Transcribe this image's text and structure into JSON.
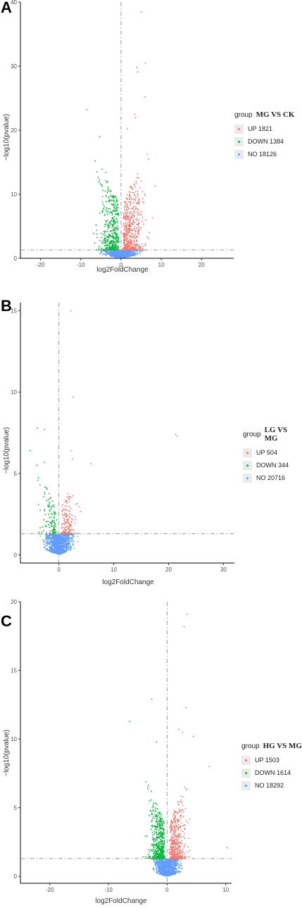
{
  "panels": [
    {
      "label": "A",
      "legend": {
        "group_label": "group",
        "subtitle": "MG VS CK",
        "items": [
          "UP 1821",
          "DOWN 1384",
          "NO 18126"
        ]
      }
    },
    {
      "label": "B",
      "legend": {
        "group_label": "group",
        "subtitle": "LG VS MG",
        "items": [
          "UP 504",
          "DOWN 344",
          "NO 20716"
        ]
      }
    },
    {
      "label": "C",
      "legend": {
        "group_label": "group",
        "subtitle": "HG VS MG",
        "items": [
          "UP 1503",
          "DOWN 1614",
          "NO 18292"
        ]
      }
    }
  ],
  "colors": {
    "up": "#f8766d",
    "down": "#00ba38",
    "no": "#619cff",
    "threshold": "#9a9a9a"
  },
  "chart_data": [
    {
      "type": "scatter",
      "title": "",
      "xlabel": "log2FoldChange",
      "ylabel": "−log10(pvalue)",
      "xlim": [
        -25,
        28
      ],
      "ylim": [
        0,
        40
      ],
      "xticks": [
        -20,
        -10,
        0,
        10,
        20
      ],
      "yticks": [
        0,
        10,
        20,
        30,
        40
      ],
      "vline": 0,
      "hline": 1.3,
      "grid": false,
      "legend_position": "right",
      "counts": {
        "up": 1821,
        "down": 1384,
        "no": 18126
      },
      "seed": 7,
      "xspread": 9,
      "yspread": 13,
      "outliers": [
        {
          "x": 5.0,
          "y": 38.5,
          "group": "UP"
        },
        {
          "x": 6.1,
          "y": 30.5,
          "group": "UP"
        },
        {
          "x": 3.9,
          "y": 29.8,
          "group": "UP"
        },
        {
          "x": 4.1,
          "y": 29.1,
          "group": "UP"
        },
        {
          "x": 6.0,
          "y": 25.2,
          "group": "UP"
        },
        {
          "x": 3.4,
          "y": 22.5,
          "group": "UP"
        },
        {
          "x": 3.6,
          "y": 22.0,
          "group": "UP"
        },
        {
          "x": 1.6,
          "y": 20.2,
          "group": "UP"
        },
        {
          "x": -8.5,
          "y": 23.2,
          "group": "DOWN"
        },
        {
          "x": -5.3,
          "y": 19.0,
          "group": "DOWN"
        },
        {
          "x": -6.4,
          "y": 15.2,
          "group": "DOWN"
        },
        {
          "x": -6.0,
          "y": 13.5,
          "group": "DOWN"
        },
        {
          "x": -3.8,
          "y": 13.4,
          "group": "DOWN"
        },
        {
          "x": 8.5,
          "y": 11.3,
          "group": "UP"
        }
      ]
    },
    {
      "type": "scatter",
      "title": "",
      "xlabel": "log2FoldChange",
      "ylabel": "−log10(pvalue)",
      "xlim": [
        -7,
        32
      ],
      "ylim": [
        -0.5,
        15.5
      ],
      "xticks": [
        0,
        10,
        20,
        30
      ],
      "yticks": [
        0,
        5,
        10,
        15
      ],
      "vline": 0,
      "hline": 1.3,
      "grid": false,
      "legend_position": "right",
      "counts": {
        "up": 504,
        "down": 344,
        "no": 20716
      },
      "seed": 11,
      "xspread": 5,
      "yspread": 3,
      "outliers": [
        {
          "x": 2.2,
          "y": 15.0,
          "group": "UP"
        },
        {
          "x": 2.6,
          "y": 9.7,
          "group": "UP"
        },
        {
          "x": 21.3,
          "y": 7.4,
          "group": "UP"
        },
        {
          "x": 21.5,
          "y": 7.3,
          "group": "UP"
        },
        {
          "x": -3.9,
          "y": 7.8,
          "group": "DOWN"
        },
        {
          "x": -2.6,
          "y": 7.7,
          "group": "DOWN"
        },
        {
          "x": -5.2,
          "y": 6.4,
          "group": "DOWN"
        },
        {
          "x": 2.3,
          "y": 6.4,
          "group": "UP"
        },
        {
          "x": -2.6,
          "y": 5.7,
          "group": "DOWN"
        },
        {
          "x": 5.8,
          "y": 5.6,
          "group": "UP"
        },
        {
          "x": 2.5,
          "y": 5.9,
          "group": "UP"
        },
        {
          "x": -4.0,
          "y": 5.5,
          "group": "DOWN"
        }
      ]
    },
    {
      "type": "scatter",
      "title": "",
      "xlabel": "log2FoldChange",
      "ylabel": "−log10(pvalue)",
      "xlim": [
        -25,
        11
      ],
      "ylim": [
        -0.5,
        20
      ],
      "xticks": [
        -20,
        -10,
        0,
        10
      ],
      "yticks": [
        0,
        5,
        10,
        15,
        20
      ],
      "vline": 0,
      "hline": 1.3,
      "grid": false,
      "legend_position": "right",
      "counts": {
        "up": 1503,
        "down": 1614,
        "no": 18292
      },
      "seed": 23,
      "xspread": 4.5,
      "yspread": 4.5,
      "outliers": [
        {
          "x": 3.4,
          "y": 19.1,
          "group": "UP"
        },
        {
          "x": 2.9,
          "y": 18.2,
          "group": "UP"
        },
        {
          "x": -2.6,
          "y": 12.9,
          "group": "DOWN"
        },
        {
          "x": 3.2,
          "y": 12.3,
          "group": "UP"
        },
        {
          "x": -6.4,
          "y": 11.3,
          "group": "DOWN"
        },
        {
          "x": 2.0,
          "y": 10.7,
          "group": "UP"
        },
        {
          "x": 2.6,
          "y": 10.5,
          "group": "UP"
        },
        {
          "x": 4.5,
          "y": 10.2,
          "group": "UP"
        },
        {
          "x": -1.8,
          "y": 9.8,
          "group": "DOWN"
        },
        {
          "x": 7.2,
          "y": 8.0,
          "group": "UP"
        },
        {
          "x": 10.2,
          "y": 2.1,
          "group": "UP"
        },
        {
          "x": -8.5,
          "y": 1.3,
          "group": "NO"
        }
      ]
    }
  ]
}
